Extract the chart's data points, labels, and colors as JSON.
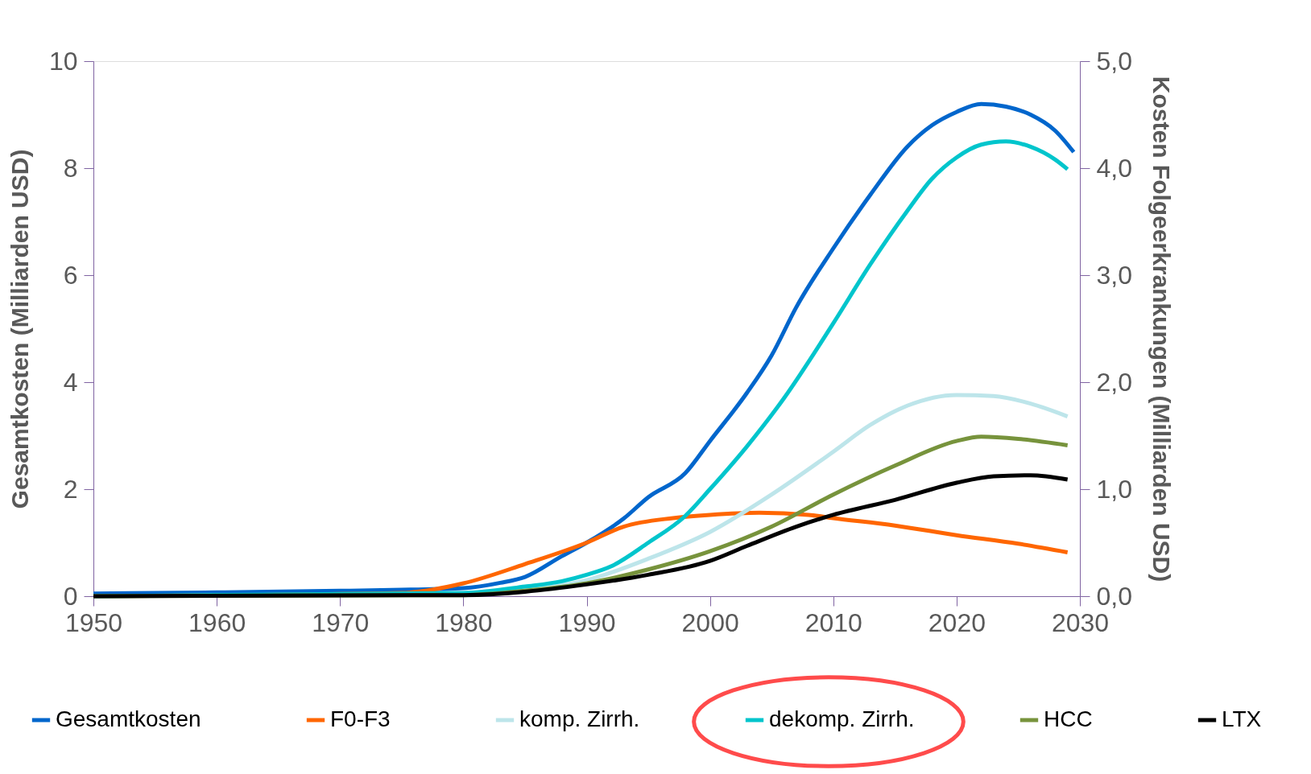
{
  "chart_data": {
    "type": "line",
    "ylabel": "Gesamtkosten (Milliarden USD)",
    "y2label": "Kosten Folgeerkrankungen (Milliarden USD)",
    "xlim": [
      1950,
      2030
    ],
    "xticks": [
      1950,
      1960,
      1970,
      1980,
      1990,
      2000,
      2010,
      2020,
      2030
    ],
    "ylim": [
      0,
      10
    ],
    "yticks": [
      0,
      2,
      4,
      6,
      8,
      10
    ],
    "y2lim": [
      0,
      5
    ],
    "y2ticks": [
      {
        "value": 0,
        "label": "0,0"
      },
      {
        "value": 1,
        "label": "1,0"
      },
      {
        "value": 2,
        "label": "2,0"
      },
      {
        "value": 3,
        "label": "3,0"
      },
      {
        "value": 4,
        "label": "4,0"
      },
      {
        "value": 5,
        "label": "5,0"
      }
    ],
    "grid": false,
    "legend": "bottom",
    "marker": "none",
    "line_style": "solid",
    "series": [
      {
        "name": "Gesamtkosten",
        "color": "#0066cc",
        "x": [
          1950,
          1960,
          1970,
          1975,
          1980,
          1983,
          1985,
          1988,
          1990,
          1993,
          1995,
          1998,
          2000,
          2003,
          2005,
          2007,
          2010,
          2013,
          2016,
          2018,
          2020,
          2022,
          2024,
          2026,
          2028,
          2029.5
        ],
        "values": [
          0.05,
          0.07,
          0.1,
          0.12,
          0.15,
          0.25,
          0.36,
          0.75,
          1.0,
          1.45,
          1.85,
          2.3,
          2.9,
          3.8,
          4.5,
          5.4,
          6.5,
          7.5,
          8.4,
          8.8,
          9.05,
          9.2,
          9.15,
          9.0,
          8.7,
          8.3
        ]
      },
      {
        "name": "F0-F3",
        "color": "#ff6600",
        "axis": "y2",
        "x": [
          1950,
          1975,
          1980,
          1985,
          1990,
          1993,
          1997,
          2000,
          2004,
          2008,
          2010,
          2015,
          2020,
          2025,
          2029
        ],
        "values": [
          0,
          0.03,
          0.12,
          0.3,
          0.5,
          0.65,
          0.73,
          0.76,
          0.78,
          0.76,
          0.73,
          0.66,
          0.57,
          0.49,
          0.41
        ]
      },
      {
        "name": "komp. Zirrh.",
        "color": "#bde5ea",
        "axis": "y2",
        "x": [
          1950,
          1980,
          1985,
          1990,
          1995,
          2000,
          2005,
          2010,
          2013,
          2016,
          2020,
          2023,
          2026,
          2029
        ],
        "values": [
          0,
          0.02,
          0.06,
          0.15,
          0.35,
          0.6,
          0.95,
          1.35,
          1.6,
          1.78,
          1.88,
          1.87,
          1.8,
          1.68
        ]
      },
      {
        "name": "dekomp. Zirrh.",
        "color": "#00c5cc",
        "axis": "y2",
        "x": [
          1950,
          1980,
          1985,
          1988,
          1990,
          1992,
          1995,
          1998,
          2000,
          2003,
          2006,
          2010,
          2013,
          2016,
          2018,
          2020,
          2022,
          2024,
          2026,
          2028,
          2029
        ],
        "values": [
          0,
          0.03,
          0.09,
          0.14,
          0.2,
          0.28,
          0.5,
          0.75,
          1.0,
          1.4,
          1.85,
          2.55,
          3.1,
          3.6,
          3.9,
          4.1,
          4.22,
          4.25,
          4.2,
          4.08,
          3.99
        ]
      },
      {
        "name": "HCC",
        "color": "#77933c",
        "axis": "y2",
        "x": [
          1950,
          1980,
          1985,
          1990,
          1995,
          2000,
          2005,
          2010,
          2015,
          2020,
          2022,
          2025,
          2029
        ],
        "values": [
          0,
          0.01,
          0.05,
          0.12,
          0.25,
          0.42,
          0.65,
          0.95,
          1.22,
          1.45,
          1.49,
          1.47,
          1.41
        ]
      },
      {
        "name": "LTX",
        "color": "#000000",
        "axis": "y2",
        "x": [
          1950,
          1980,
          1990,
          1995,
          2000,
          2003,
          2007,
          2010,
          2015,
          2020,
          2023,
          2026,
          2029
        ],
        "values": [
          0,
          0.01,
          0.11,
          0.2,
          0.33,
          0.47,
          0.65,
          0.76,
          0.9,
          1.06,
          1.12,
          1.13,
          1.09
        ]
      }
    ]
  }
}
